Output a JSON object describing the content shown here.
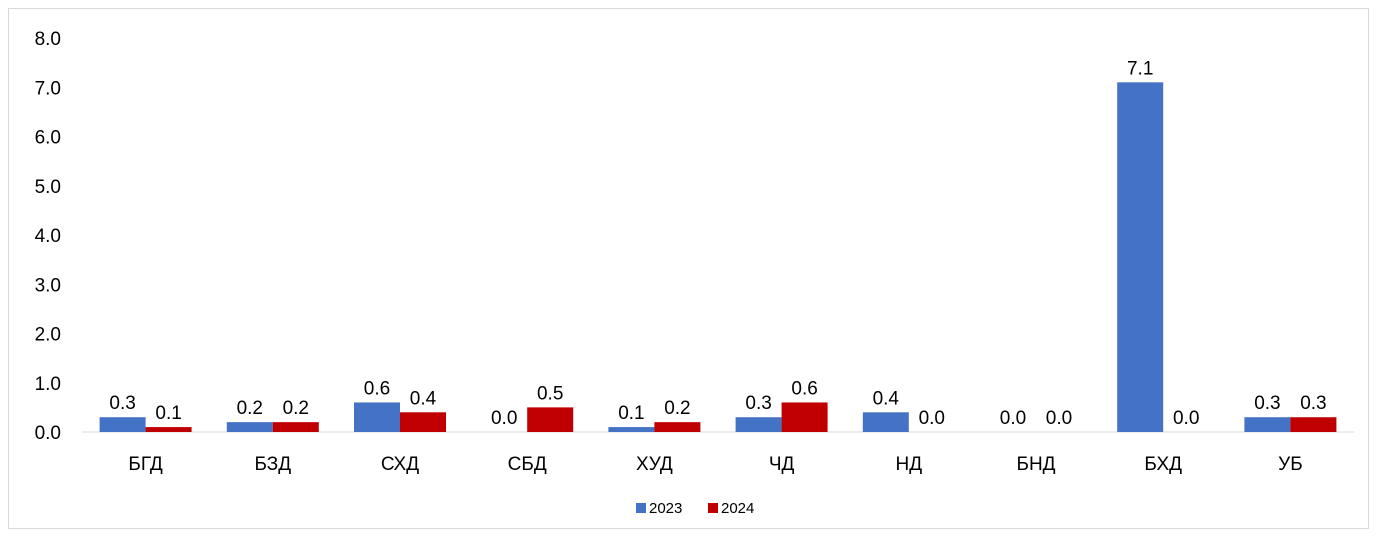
{
  "chart_data": {
    "type": "bar",
    "categories": [
      "БГД",
      "БЗД",
      "СХД",
      "СБД",
      "ХУД",
      "ЧД",
      "НД",
      "БНД",
      "БХД",
      "УБ"
    ],
    "series": [
      {
        "name": "2023",
        "color": "#4472C4",
        "values": [
          0.3,
          0.2,
          0.6,
          0.0,
          0.1,
          0.3,
          0.4,
          0.0,
          7.1,
          0.3
        ],
        "labels": [
          "0.3",
          "0.2",
          "0.6",
          "0.0",
          "0.1",
          "0.3",
          "0.4",
          "0.0",
          "7.1",
          "0.3"
        ]
      },
      {
        "name": "2024",
        "color": "#C00000",
        "values": [
          0.1,
          0.2,
          0.4,
          0.5,
          0.2,
          0.6,
          0.0,
          0.0,
          0.0,
          0.3
        ],
        "labels": [
          "0.1",
          "0.2",
          "0.4",
          "0.5",
          "0.2",
          "0.6",
          "0.0",
          "0.0",
          "0.0",
          "0.3"
        ]
      }
    ],
    "ylim": [
      0,
      8
    ],
    "yticks": [
      "0.0",
      "1.0",
      "2.0",
      "3.0",
      "4.0",
      "5.0",
      "6.0",
      "7.0",
      "8.0"
    ],
    "grid": false,
    "legend_position": "bottom-center",
    "title": "",
    "xlabel": "",
    "ylabel": ""
  }
}
